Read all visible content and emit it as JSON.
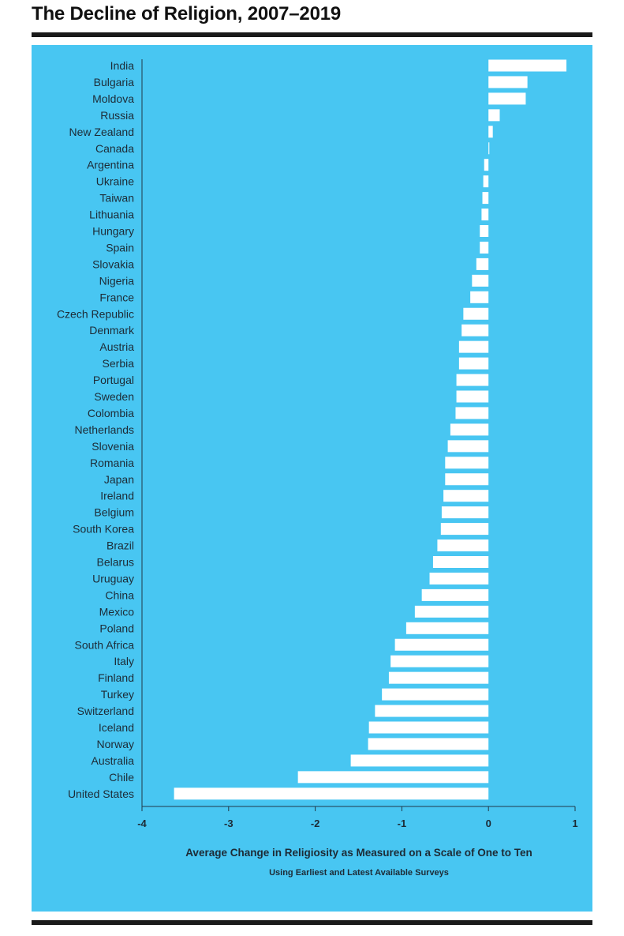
{
  "title": "The Decline of Religion, 2007–2019",
  "colors": {
    "panel": "#48c6f2",
    "bar": "#ffffff",
    "axis": "#1f3a4a",
    "text": "#1d2b36"
  },
  "chart_data": {
    "type": "bar",
    "orientation": "horizontal",
    "xlabel": "Average Change in Religiosity as Measured on a Scale of One to Ten",
    "xsublabel": "Using Earliest and Latest Available Surveys",
    "xlim": [
      -4,
      1
    ],
    "xticks": [
      "-4",
      "-3",
      "-2",
      "-1",
      "0",
      "1"
    ],
    "grid": false,
    "categories": [
      "India",
      "Bulgaria",
      "Moldova",
      "Russia",
      "New Zealand",
      "Canada",
      "Argentina",
      "Ukraine",
      "Taiwan",
      "Lithuania",
      "Hungary",
      "Spain",
      "Slovakia",
      "Nigeria",
      "France",
      "Czech Republic",
      "Denmark",
      "Austria",
      "Serbia",
      "Portugal",
      "Sweden",
      "Colombia",
      "Netherlands",
      "Slovenia",
      "Romania",
      "Japan",
      "Ireland",
      "Belgium",
      "South Korea",
      "Brazil",
      "Belarus",
      "Uruguay",
      "China",
      "Mexico",
      "Poland",
      "South Africa",
      "Italy",
      "Finland",
      "Turkey",
      "Switzerland",
      "Iceland",
      "Norway",
      "Australia",
      "Chile",
      "United States"
    ],
    "values": [
      0.9,
      0.45,
      0.43,
      0.13,
      0.05,
      0.01,
      -0.05,
      -0.06,
      -0.07,
      -0.08,
      -0.1,
      -0.1,
      -0.14,
      -0.19,
      -0.21,
      -0.29,
      -0.31,
      -0.34,
      -0.34,
      -0.37,
      -0.37,
      -0.38,
      -0.44,
      -0.47,
      -0.5,
      -0.5,
      -0.52,
      -0.54,
      -0.55,
      -0.59,
      -0.64,
      -0.68,
      -0.77,
      -0.85,
      -0.95,
      -1.08,
      -1.13,
      -1.15,
      -1.23,
      -1.31,
      -1.38,
      -1.39,
      -1.59,
      -2.2,
      -3.63
    ]
  }
}
